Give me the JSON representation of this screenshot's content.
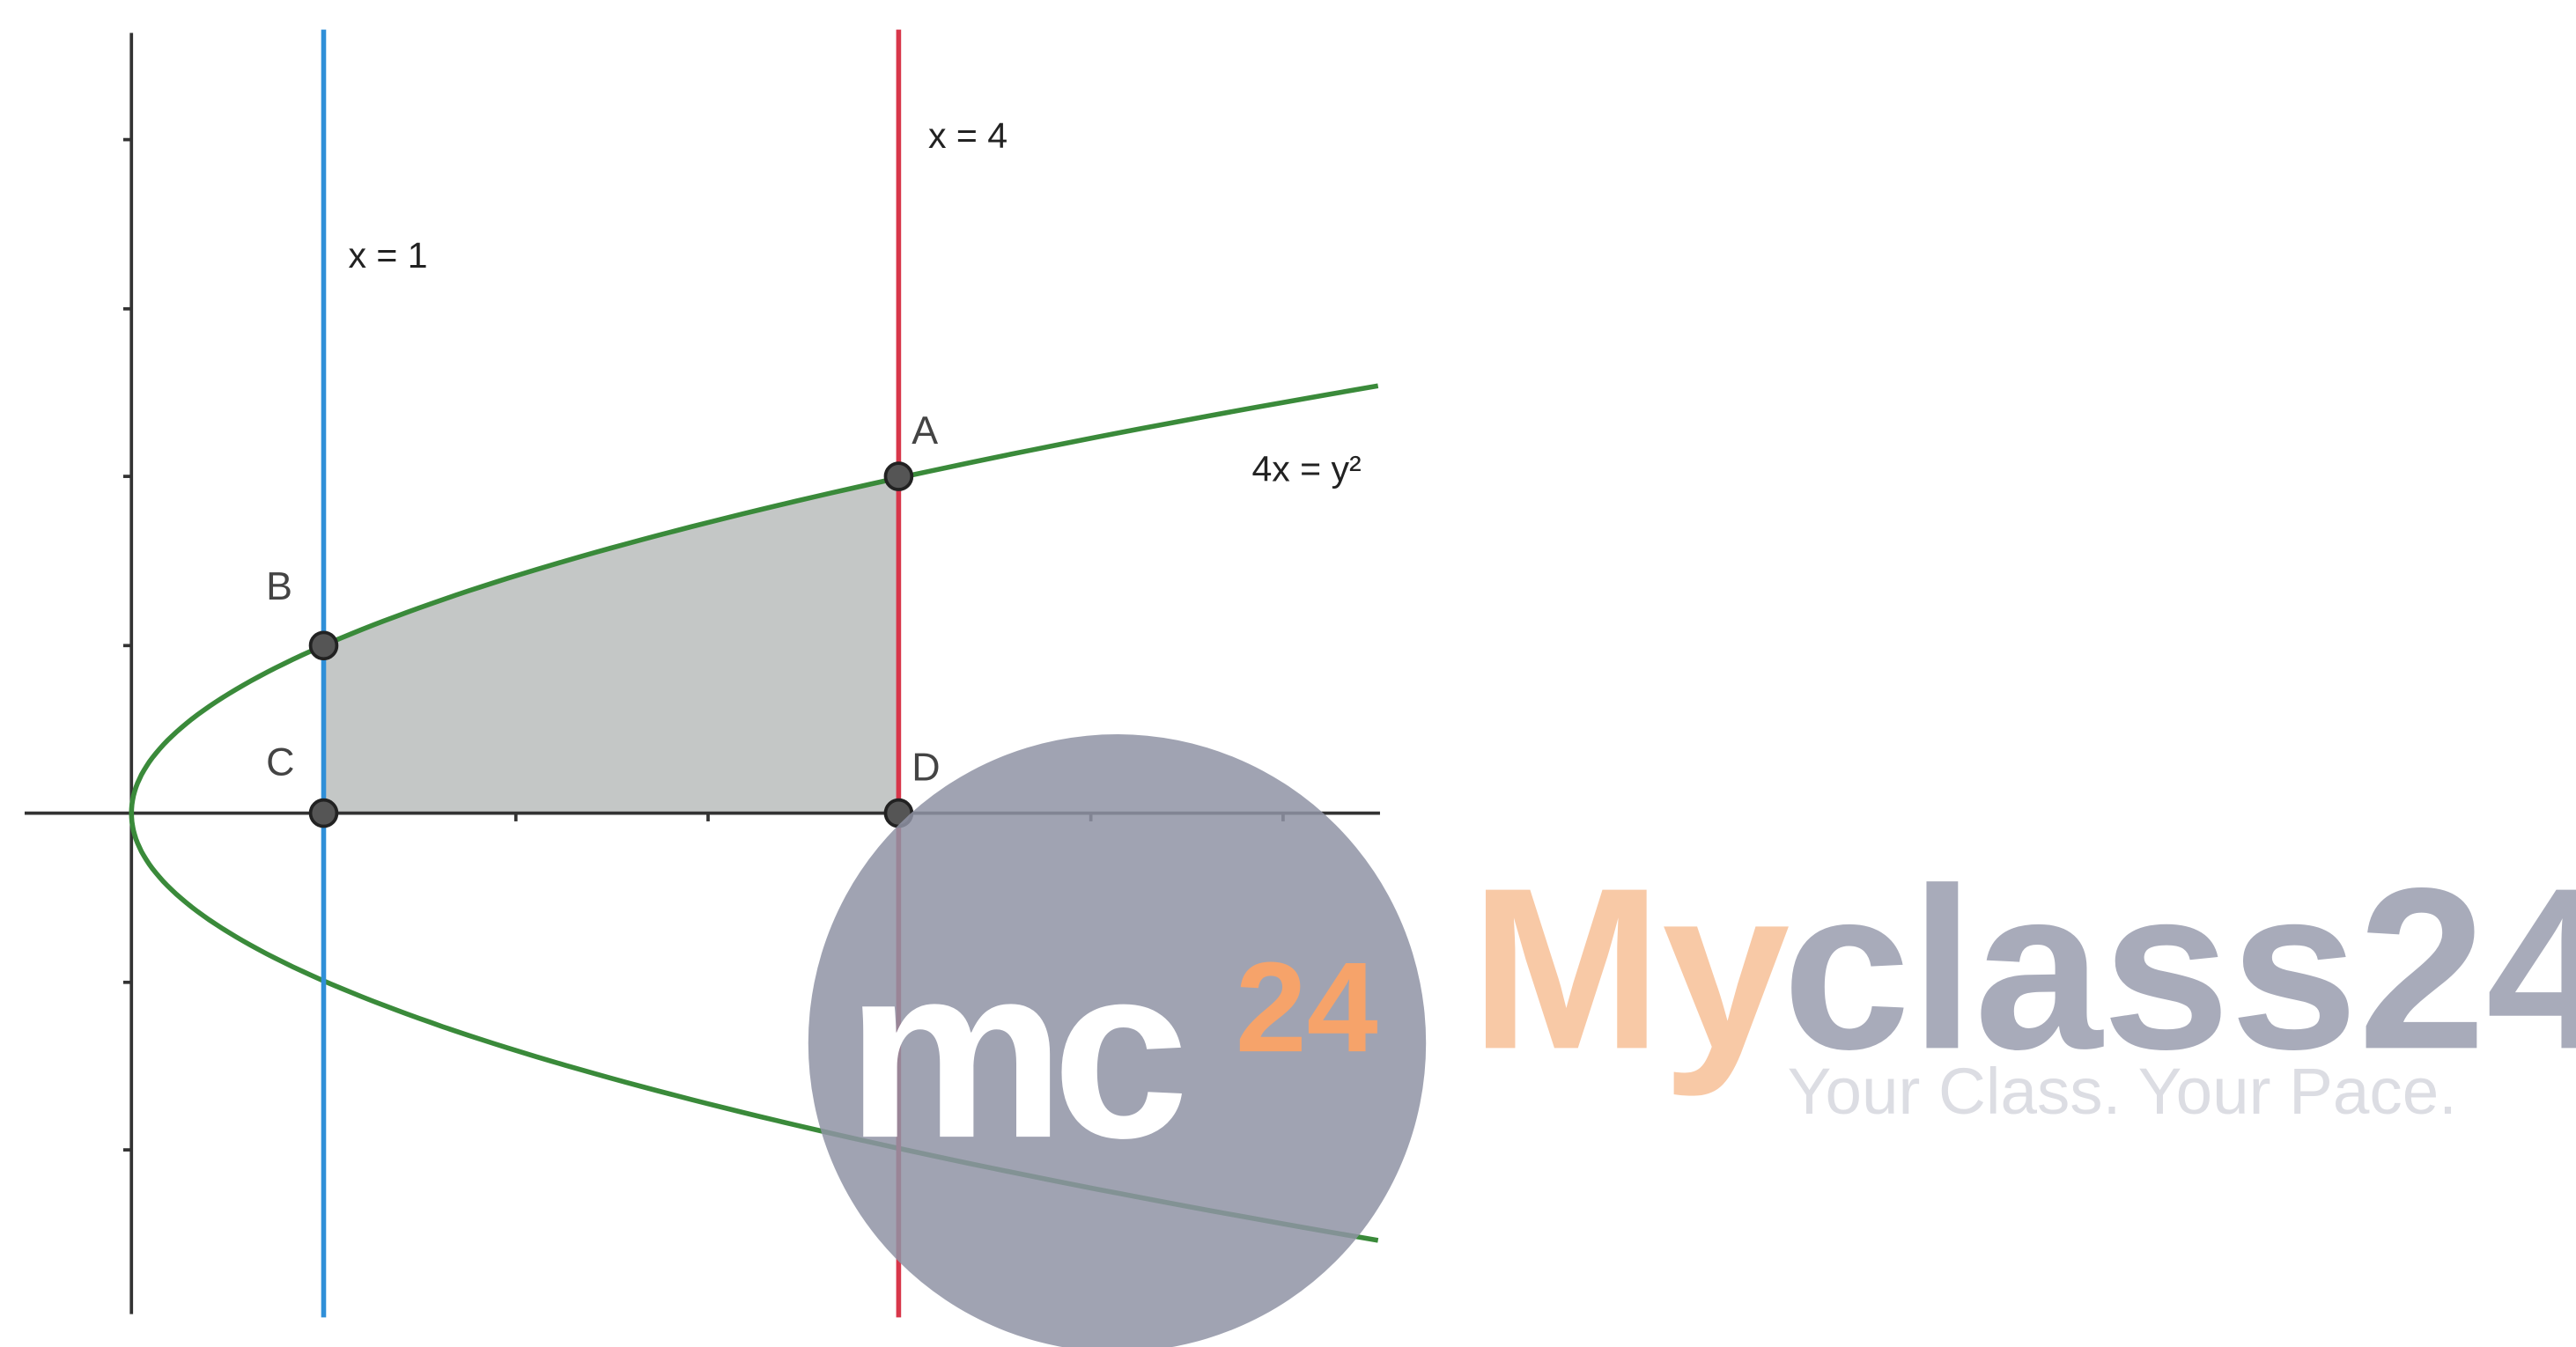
{
  "lines": [
    {
      "label": "x = 1"
    },
    {
      "label": "x = 4"
    }
  ],
  "curve": {
    "label": "4x = y²"
  },
  "points": [
    {
      "label": "A"
    },
    {
      "label": "B"
    },
    {
      "label": "C"
    },
    {
      "label": "D"
    }
  ],
  "watermark": {
    "logo": "mc",
    "logo_sup": "24",
    "brand_my": "My",
    "brand_rest": "class24",
    "tagline": "Your Class. Your Pace."
  }
}
